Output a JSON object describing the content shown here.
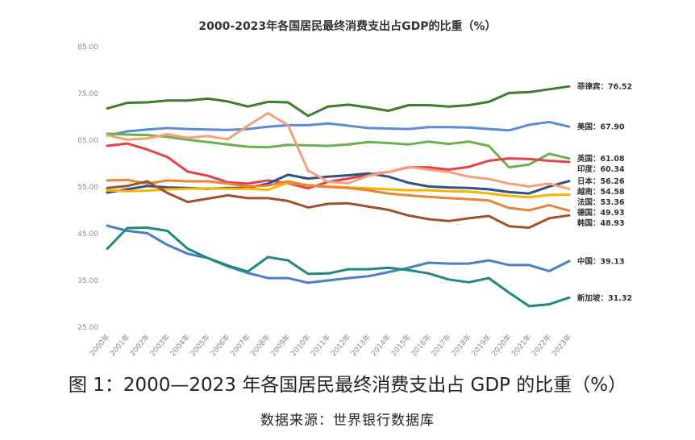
{
  "chart_data": {
    "type": "line",
    "title": "2000-2023年各国居民最终消费支出占GDP的比重（%）",
    "ylim": [
      25,
      85
    ],
    "yticks": [
      "25.00",
      "35.00",
      "45.00",
      "55.00",
      "65.00",
      "75.00",
      "85.00"
    ],
    "ytick_values": [
      25,
      35,
      45,
      55,
      65,
      75,
      85
    ],
    "grid": false,
    "legend": "labels at line ends (right)",
    "categories": [
      "2000年",
      "2001年",
      "2002年",
      "2003年",
      "2004年",
      "2005年",
      "2006年",
      "2007年",
      "2008年",
      "2009年",
      "2010年",
      "2011年",
      "2012年",
      "2013年",
      "2014年",
      "2015年",
      "2016年",
      "2017年",
      "2018年",
      "2019年",
      "2020年",
      "2021年",
      "2022年",
      "2023年"
    ],
    "series": [
      {
        "name": "菲律宾",
        "end_label": "菲律宾：76.52",
        "color": "#3f7a2f",
        "values": [
          71.8,
          73.0,
          73.1,
          73.5,
          73.5,
          73.9,
          73.3,
          72.2,
          73.2,
          73.1,
          70.2,
          72.2,
          72.6,
          72.0,
          71.3,
          72.5,
          72.5,
          72.2,
          72.5,
          73.2,
          75.1,
          75.3,
          75.9,
          76.52
        ]
      },
      {
        "name": "美国",
        "end_label": "美国：67.90",
        "color": "#5b8ad6",
        "values": [
          66.0,
          66.9,
          67.3,
          67.6,
          67.4,
          67.3,
          67.2,
          67.4,
          67.9,
          68.2,
          68.2,
          68.6,
          68.1,
          67.6,
          67.5,
          67.4,
          67.8,
          67.8,
          67.7,
          67.4,
          67.1,
          68.3,
          68.9,
          67.9
        ]
      },
      {
        "name": "英国",
        "end_label": "英国：61.08",
        "color": "#6ab04c",
        "values": [
          66.4,
          66.2,
          66.1,
          65.7,
          65.1,
          64.6,
          64.1,
          63.6,
          63.5,
          64.0,
          63.9,
          63.8,
          64.1,
          64.6,
          64.4,
          64.1,
          64.7,
          64.2,
          64.7,
          63.8,
          59.2,
          59.8,
          62.1,
          61.08
        ]
      },
      {
        "name": "印度",
        "end_label": "印度：60.34",
        "color": "#e0424a",
        "values": [
          63.8,
          64.3,
          63.0,
          61.4,
          58.3,
          57.4,
          56.0,
          55.7,
          56.4,
          55.8,
          54.7,
          56.1,
          56.8,
          57.6,
          58.2,
          59.2,
          59.2,
          58.7,
          59.3,
          60.6,
          61.1,
          61.0,
          60.6,
          60.34
        ]
      },
      {
        "name": "日本",
        "end_label": "日本：56.26",
        "color": "#2e5283",
        "values": [
          53.8,
          54.5,
          55.2,
          54.9,
          54.8,
          54.6,
          54.8,
          54.8,
          55.7,
          57.6,
          56.8,
          57.2,
          57.5,
          57.9,
          57.2,
          55.9,
          55.1,
          54.9,
          54.8,
          54.5,
          53.9,
          53.6,
          55.1,
          56.26
        ]
      },
      {
        "name": "越南",
        "end_label": "越南：54.58",
        "color": "#f5a07a",
        "values": [
          66.1,
          65.1,
          65.4,
          66.3,
          65.5,
          65.9,
          65.2,
          68.1,
          70.8,
          68.2,
          58.5,
          56.1,
          55.8,
          57.4,
          58.2,
          59.3,
          58.7,
          58.2,
          57.2,
          56.7,
          55.7,
          55.1,
          55.7,
          54.58
        ]
      },
      {
        "name": "法国",
        "end_label": "法国：53.36",
        "color": "#f4b400",
        "values": [
          54.3,
          54.1,
          54.2,
          54.5,
          54.6,
          54.7,
          54.6,
          54.6,
          54.4,
          55.9,
          55.4,
          55.1,
          54.9,
          54.7,
          54.5,
          54.3,
          54.3,
          54.1,
          54.0,
          53.6,
          53.1,
          52.8,
          53.3,
          53.36
        ]
      },
      {
        "name": "德国",
        "end_label": "德国：49.93",
        "color": "#e8833a",
        "values": [
          56.4,
          56.5,
          55.7,
          56.4,
          56.2,
          56.2,
          55.7,
          55.1,
          55.3,
          56.2,
          55.3,
          55.0,
          54.8,
          54.3,
          53.6,
          53.2,
          52.9,
          52.6,
          52.4,
          52.1,
          50.5,
          50.0,
          51.1,
          49.93
        ]
      },
      {
        "name": "韩国",
        "end_label": "韩国：48.93",
        "color": "#a0522d",
        "values": [
          54.8,
          55.2,
          56.2,
          53.7,
          51.8,
          52.5,
          53.2,
          52.6,
          52.6,
          52.0,
          50.6,
          51.4,
          51.5,
          50.8,
          50.1,
          48.9,
          48.1,
          47.7,
          48.3,
          48.8,
          46.6,
          46.3,
          48.3,
          48.93
        ]
      },
      {
        "name": "中国",
        "end_label": "中国：39.13",
        "color": "#4a7fc1",
        "values": [
          46.7,
          45.6,
          45.1,
          42.6,
          40.7,
          39.8,
          38.0,
          36.6,
          35.5,
          35.5,
          34.5,
          35.0,
          35.5,
          35.9,
          36.8,
          37.7,
          38.8,
          38.6,
          38.6,
          39.3,
          38.3,
          38.3,
          37.0,
          39.13
        ]
      },
      {
        "name": "新加坡",
        "end_label": "新加坡：31.32",
        "color": "#1f8a7a",
        "values": [
          41.8,
          46.2,
          46.3,
          45.6,
          41.8,
          39.8,
          38.2,
          36.9,
          40.0,
          39.3,
          36.4,
          36.5,
          37.4,
          37.4,
          37.7,
          37.2,
          36.5,
          35.2,
          34.6,
          35.5,
          32.4,
          29.5,
          29.9,
          31.32
        ]
      }
    ]
  },
  "caption": {
    "title": "图 1：2000—2023 年各国居民最终消费支出占 GDP 的比重（%）",
    "source": "数据来源：世界银行数据库"
  }
}
